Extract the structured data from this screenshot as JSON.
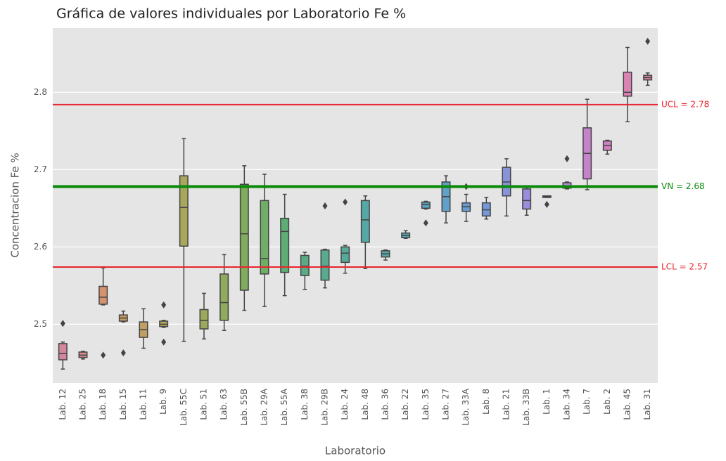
{
  "chart_data": {
    "type": "box",
    "title": "Gráfica de valores individuales por Laboratorio Fe %",
    "x_label": "Laboratorio",
    "y_label": "Concentracion Fe %",
    "categories": [
      "Lab. 12",
      "Lab. 25",
      "Lab. 18",
      "Lab. 15",
      "Lab. 11",
      "Lab. 9",
      "Lab. 55C",
      "Lab. 51",
      "Lab. 63",
      "Lab. 55B",
      "Lab. 29A",
      "Lab. 55A",
      "Lab. 38",
      "Lab. 29B",
      "Lab. 24",
      "Lab. 48",
      "Lab. 36",
      "Lab. 22",
      "Lab. 35",
      "Lab. 27",
      "Lab. 33A",
      "Lab. 8",
      "Lab. 21",
      "Lab. 33B",
      "Lab. 1",
      "Lab. 34",
      "Lab. 7",
      "Lab. 2",
      "Lab. 45",
      "Lab. 31"
    ],
    "colors": [
      "#d3879d",
      "#d48c8c",
      "#d4936e",
      "#c99a62",
      "#c0a060",
      "#b5a55e",
      "#a8a85c",
      "#9ca95c",
      "#8fab5c",
      "#82ac5d",
      "#6fae65",
      "#5ead74",
      "#5aab85",
      "#58aa90",
      "#57a99a",
      "#56a8a4",
      "#57a7ad",
      "#59a5b6",
      "#5ca3bf",
      "#61a0c8",
      "#6a9cd0",
      "#7698d6",
      "#8893da",
      "#988edb",
      "#a88ad9",
      "#b686d4",
      "#c583cc",
      "#d080c0",
      "#d883b3",
      "#da86a6"
    ],
    "boxes": [
      {
        "min": 2.442,
        "q1": 2.454,
        "median": 2.462,
        "q3": 2.475,
        "max": 2.477,
        "outliers": [
          2.501
        ]
      },
      {
        "min": 2.455,
        "q1": 2.457,
        "median": 2.46,
        "q3": 2.464,
        "max": 2.465,
        "outliers": []
      },
      {
        "min": 2.525,
        "q1": 2.526,
        "median": 2.535,
        "q3": 2.549,
        "max": 2.573,
        "outliers": [
          2.46
        ]
      },
      {
        "min": 2.503,
        "q1": 2.504,
        "median": 2.508,
        "q3": 2.512,
        "max": 2.517,
        "outliers": [
          2.463
        ]
      },
      {
        "min": 2.469,
        "q1": 2.483,
        "median": 2.493,
        "q3": 2.503,
        "max": 2.52,
        "outliers": []
      },
      {
        "min": 2.496,
        "q1": 2.497,
        "median": 2.5,
        "q3": 2.504,
        "max": 2.505,
        "outliers": [
          2.525,
          2.477
        ]
      },
      {
        "min": 2.478,
        "q1": 2.601,
        "median": 2.651,
        "q3": 2.692,
        "max": 2.74,
        "outliers": []
      },
      {
        "min": 2.481,
        "q1": 2.494,
        "median": 2.505,
        "q3": 2.519,
        "max": 2.54,
        "outliers": []
      },
      {
        "min": 2.492,
        "q1": 2.505,
        "median": 2.528,
        "q3": 2.565,
        "max": 2.59,
        "outliers": []
      },
      {
        "min": 2.518,
        "q1": 2.544,
        "median": 2.617,
        "q3": 2.681,
        "max": 2.705,
        "outliers": []
      },
      {
        "min": 2.523,
        "q1": 2.565,
        "median": 2.585,
        "q3": 2.66,
        "max": 2.694,
        "outliers": []
      },
      {
        "min": 2.537,
        "q1": 2.567,
        "median": 2.62,
        "q3": 2.637,
        "max": 2.668,
        "outliers": []
      },
      {
        "min": 2.545,
        "q1": 2.563,
        "median": 2.575,
        "q3": 2.589,
        "max": 2.593,
        "outliers": []
      },
      {
        "min": 2.547,
        "q1": 2.557,
        "median": 2.575,
        "q3": 2.596,
        "max": 2.597,
        "outliers": [
          2.653
        ]
      },
      {
        "min": 2.566,
        "q1": 2.58,
        "median": 2.592,
        "q3": 2.6,
        "max": 2.602,
        "outliers": [
          2.658
        ]
      },
      {
        "min": 2.572,
        "q1": 2.606,
        "median": 2.635,
        "q3": 2.66,
        "max": 2.666,
        "outliers": []
      },
      {
        "min": 2.583,
        "q1": 2.587,
        "median": 2.591,
        "q3": 2.595,
        "max": 2.596,
        "outliers": []
      },
      {
        "min": 2.611,
        "q1": 2.612,
        "median": 2.615,
        "q3": 2.618,
        "max": 2.621,
        "outliers": []
      },
      {
        "min": 2.649,
        "q1": 2.65,
        "median": 2.655,
        "q3": 2.658,
        "max": 2.659,
        "outliers": [
          2.631
        ]
      },
      {
        "min": 2.631,
        "q1": 2.646,
        "median": 2.665,
        "q3": 2.684,
        "max": 2.692,
        "outliers": []
      },
      {
        "min": 2.633,
        "q1": 2.646,
        "median": 2.652,
        "q3": 2.657,
        "max": 2.668,
        "outliers": [
          2.678
        ]
      },
      {
        "min": 2.636,
        "q1": 2.64,
        "median": 2.648,
        "q3": 2.657,
        "max": 2.664,
        "outliers": []
      },
      {
        "min": 2.64,
        "q1": 2.666,
        "median": 2.684,
        "q3": 2.703,
        "max": 2.714,
        "outliers": []
      },
      {
        "min": 2.641,
        "q1": 2.649,
        "median": 2.66,
        "q3": 2.675,
        "max": 2.678,
        "outliers": []
      },
      {
        "min": 2.664,
        "q1": 2.664,
        "median": 2.665,
        "q3": 2.666,
        "max": 2.666,
        "outliers": [
          2.655
        ]
      },
      {
        "min": 2.675,
        "q1": 2.676,
        "median": 2.679,
        "q3": 2.683,
        "max": 2.684,
        "outliers": [
          2.714
        ]
      },
      {
        "min": 2.674,
        "q1": 2.688,
        "median": 2.721,
        "q3": 2.754,
        "max": 2.791,
        "outliers": []
      },
      {
        "min": 2.72,
        "q1": 2.725,
        "median": 2.731,
        "q3": 2.737,
        "max": 2.738,
        "outliers": []
      },
      {
        "min": 2.762,
        "q1": 2.795,
        "median": 2.8,
        "q3": 2.826,
        "max": 2.858,
        "outliers": []
      },
      {
        "min": 2.809,
        "q1": 2.816,
        "median": 2.819,
        "q3": 2.822,
        "max": 2.825,
        "outliers": [
          2.866
        ]
      }
    ],
    "reference_lines": [
      {
        "value": 2.784,
        "label": "UCL = 2.78",
        "color": "#e8252d"
      },
      {
        "value": 2.678,
        "label": "VN = 2.68",
        "color": "#0a8a0a"
      },
      {
        "value": 2.574,
        "label": "LCL = 2.57",
        "color": "#e8252d"
      }
    ],
    "ylim": [
      2.424,
      2.883
    ],
    "yticks": [
      2.5,
      2.6,
      2.7,
      2.8
    ],
    "grid": true
  }
}
